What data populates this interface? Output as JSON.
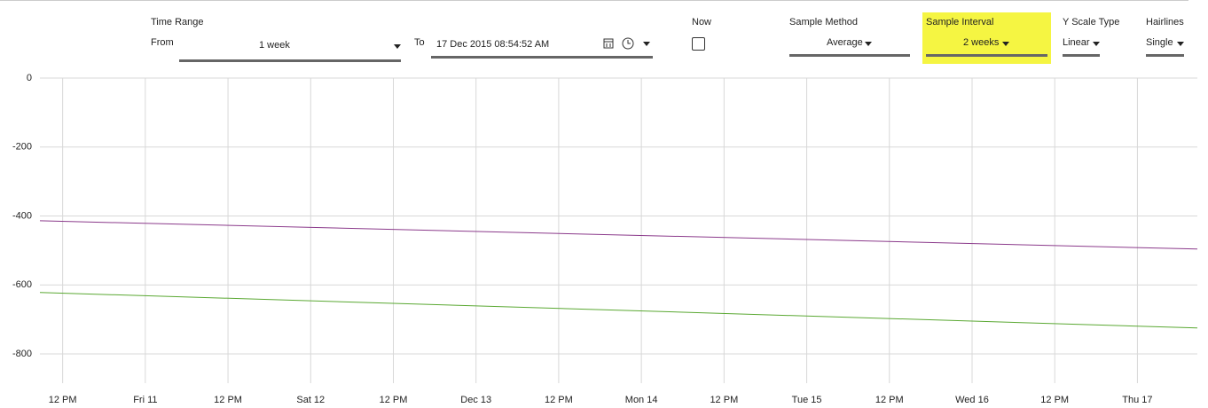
{
  "toolbar": {
    "time_range": {
      "label": "Time Range",
      "from_label": "From",
      "from_value": "1 week",
      "to_label": "To",
      "to_value": "17 Dec 2015 08:54:52 AM"
    },
    "now": {
      "label": "Now"
    },
    "sample_method": {
      "label": "Sample Method",
      "value": "Average"
    },
    "sample_interval": {
      "label": "Sample Interval",
      "value": "2 weeks"
    },
    "y_scale_type": {
      "label": "Y Scale Type",
      "value": "Linear"
    },
    "hairlines": {
      "label": "Hairlines",
      "value": "Single"
    }
  },
  "chart_data": {
    "type": "line",
    "x": [
      -15.3,
      152.7
    ],
    "xlim": [
      -15.3,
      152.7
    ],
    "xticks": [
      {
        "value": -12,
        "label": "12 PM"
      },
      {
        "value": 0,
        "label": "Fri 11"
      },
      {
        "value": 12,
        "label": "12 PM"
      },
      {
        "value": 24,
        "label": "Sat 12"
      },
      {
        "value": 36,
        "label": "12 PM"
      },
      {
        "value": 48,
        "label": "Dec 13"
      },
      {
        "value": 60,
        "label": "12 PM"
      },
      {
        "value": 72,
        "label": "Mon 14"
      },
      {
        "value": 84,
        "label": "12 PM"
      },
      {
        "value": 96,
        "label": "Tue 15"
      },
      {
        "value": 108,
        "label": "12 PM"
      },
      {
        "value": 120,
        "label": "Wed 16"
      },
      {
        "value": 132,
        "label": "12 PM"
      },
      {
        "value": 144,
        "label": "Thu 17"
      }
    ],
    "ylim": [
      -885,
      0
    ],
    "yticks": [
      0,
      -200,
      -400,
      -600,
      -800
    ],
    "grid": true,
    "series": [
      {
        "color": "#8b3a8b",
        "values": [
          -414,
          -496
        ]
      },
      {
        "color": "#5aa832",
        "values": [
          -622,
          -725
        ]
      }
    ]
  }
}
